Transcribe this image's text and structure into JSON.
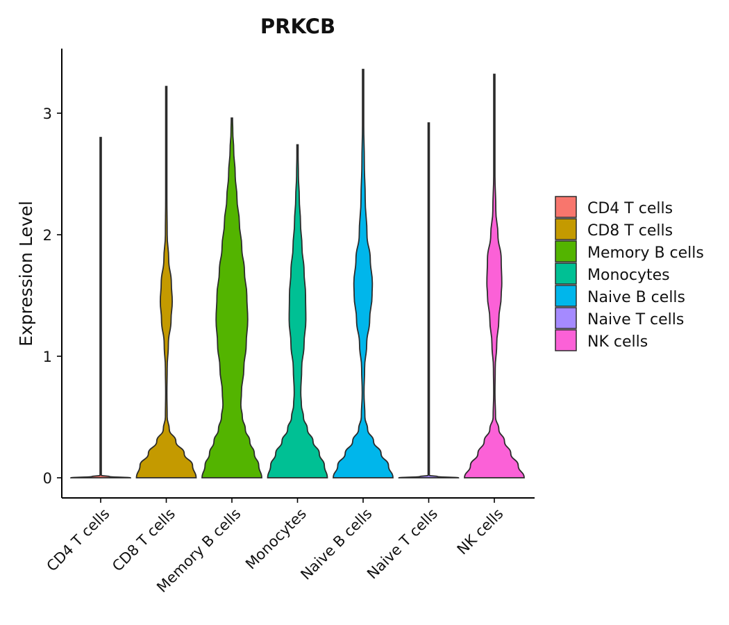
{
  "chart_data": {
    "type": "violin",
    "title": "PRKCB",
    "xlabel": "",
    "ylabel": "Expression Level",
    "ylim": [
      -0.16,
      3.5
    ],
    "yticks": [
      0,
      1,
      2,
      3
    ],
    "categories": [
      "CD4 T cells",
      "CD8 T cells",
      "Memory B cells",
      "Monocytes",
      "Naive B cells",
      "Naive T cells",
      "NK cells"
    ],
    "colors": [
      "#F8766D",
      "#C49A00",
      "#53B400",
      "#00C094",
      "#00B6EB",
      "#A58AFF",
      "#FB61D7"
    ],
    "legend": {
      "position": "right",
      "entries": [
        "CD4 T cells",
        "CD8 T cells",
        "Memory B cells",
        "Monocytes",
        "Naive B cells",
        "Naive T cells",
        "NK cells"
      ]
    },
    "violins": [
      {
        "category": "CD4 T cells",
        "max": 2.8,
        "profile": [
          [
            0,
            1.0
          ],
          [
            0.01,
            0.3
          ],
          [
            0.02,
            0.02
          ],
          [
            2.8,
            0.02
          ]
        ]
      },
      {
        "category": "CD8 T cells",
        "max": 3.22,
        "profile": [
          [
            0,
            1.0
          ],
          [
            0.1,
            0.88
          ],
          [
            0.2,
            0.6
          ],
          [
            0.3,
            0.32
          ],
          [
            0.4,
            0.1
          ],
          [
            0.5,
            0.03
          ],
          [
            0.7,
            0.02
          ],
          [
            0.9,
            0.03
          ],
          [
            1.1,
            0.07
          ],
          [
            1.3,
            0.16
          ],
          [
            1.45,
            0.2
          ],
          [
            1.6,
            0.17
          ],
          [
            1.8,
            0.08
          ],
          [
            2.0,
            0.03
          ],
          [
            2.3,
            0.015
          ],
          [
            2.8,
            0.01
          ],
          [
            3.22,
            0.005
          ]
        ]
      },
      {
        "category": "Memory B cells",
        "max": 2.96,
        "profile": [
          [
            0,
            1.0
          ],
          [
            0.1,
            0.9
          ],
          [
            0.2,
            0.75
          ],
          [
            0.3,
            0.6
          ],
          [
            0.4,
            0.45
          ],
          [
            0.5,
            0.35
          ],
          [
            0.6,
            0.3
          ],
          [
            0.7,
            0.32
          ],
          [
            0.9,
            0.4
          ],
          [
            1.1,
            0.48
          ],
          [
            1.3,
            0.53
          ],
          [
            1.5,
            0.5
          ],
          [
            1.7,
            0.42
          ],
          [
            1.9,
            0.33
          ],
          [
            2.1,
            0.25
          ],
          [
            2.3,
            0.17
          ],
          [
            2.5,
            0.11
          ],
          [
            2.7,
            0.06
          ],
          [
            2.85,
            0.03
          ],
          [
            2.96,
            0.0
          ]
        ]
      },
      {
        "category": "Monocytes",
        "max": 2.74,
        "profile": [
          [
            0,
            1.0
          ],
          [
            0.1,
            0.9
          ],
          [
            0.2,
            0.73
          ],
          [
            0.3,
            0.52
          ],
          [
            0.4,
            0.33
          ],
          [
            0.5,
            0.2
          ],
          [
            0.6,
            0.13
          ],
          [
            0.7,
            0.11
          ],
          [
            0.9,
            0.14
          ],
          [
            1.1,
            0.22
          ],
          [
            1.3,
            0.28
          ],
          [
            1.5,
            0.27
          ],
          [
            1.7,
            0.22
          ],
          [
            1.9,
            0.15
          ],
          [
            2.1,
            0.1
          ],
          [
            2.3,
            0.06
          ],
          [
            2.5,
            0.03
          ],
          [
            2.65,
            0.015
          ],
          [
            2.74,
            0.0
          ]
        ]
      },
      {
        "category": "Naive B cells",
        "max": 3.36,
        "profile": [
          [
            0,
            1.0
          ],
          [
            0.1,
            0.85
          ],
          [
            0.2,
            0.6
          ],
          [
            0.3,
            0.35
          ],
          [
            0.4,
            0.15
          ],
          [
            0.5,
            0.06
          ],
          [
            0.7,
            0.03
          ],
          [
            0.9,
            0.05
          ],
          [
            1.1,
            0.12
          ],
          [
            1.3,
            0.22
          ],
          [
            1.5,
            0.3
          ],
          [
            1.6,
            0.31
          ],
          [
            1.8,
            0.24
          ],
          [
            2.0,
            0.13
          ],
          [
            2.3,
            0.07
          ],
          [
            2.6,
            0.04
          ],
          [
            2.9,
            0.02
          ],
          [
            3.1,
            0.01
          ],
          [
            3.36,
            0.005
          ]
        ]
      },
      {
        "category": "Naive T cells",
        "max": 2.92,
        "profile": [
          [
            0,
            1.0
          ],
          [
            0.01,
            0.3
          ],
          [
            0.02,
            0.02
          ],
          [
            2.92,
            0.02
          ]
        ]
      },
      {
        "category": "NK cells",
        "max": 3.32,
        "profile": [
          [
            0,
            1.0
          ],
          [
            0.1,
            0.8
          ],
          [
            0.2,
            0.55
          ],
          [
            0.3,
            0.34
          ],
          [
            0.4,
            0.15
          ],
          [
            0.5,
            0.04
          ],
          [
            0.7,
            0.02
          ],
          [
            0.9,
            0.03
          ],
          [
            1.1,
            0.08
          ],
          [
            1.3,
            0.15
          ],
          [
            1.5,
            0.23
          ],
          [
            1.6,
            0.25
          ],
          [
            1.8,
            0.23
          ],
          [
            2.0,
            0.12
          ],
          [
            2.2,
            0.05
          ],
          [
            2.5,
            0.02
          ],
          [
            2.9,
            0.01
          ],
          [
            3.32,
            0.005
          ]
        ]
      }
    ]
  }
}
